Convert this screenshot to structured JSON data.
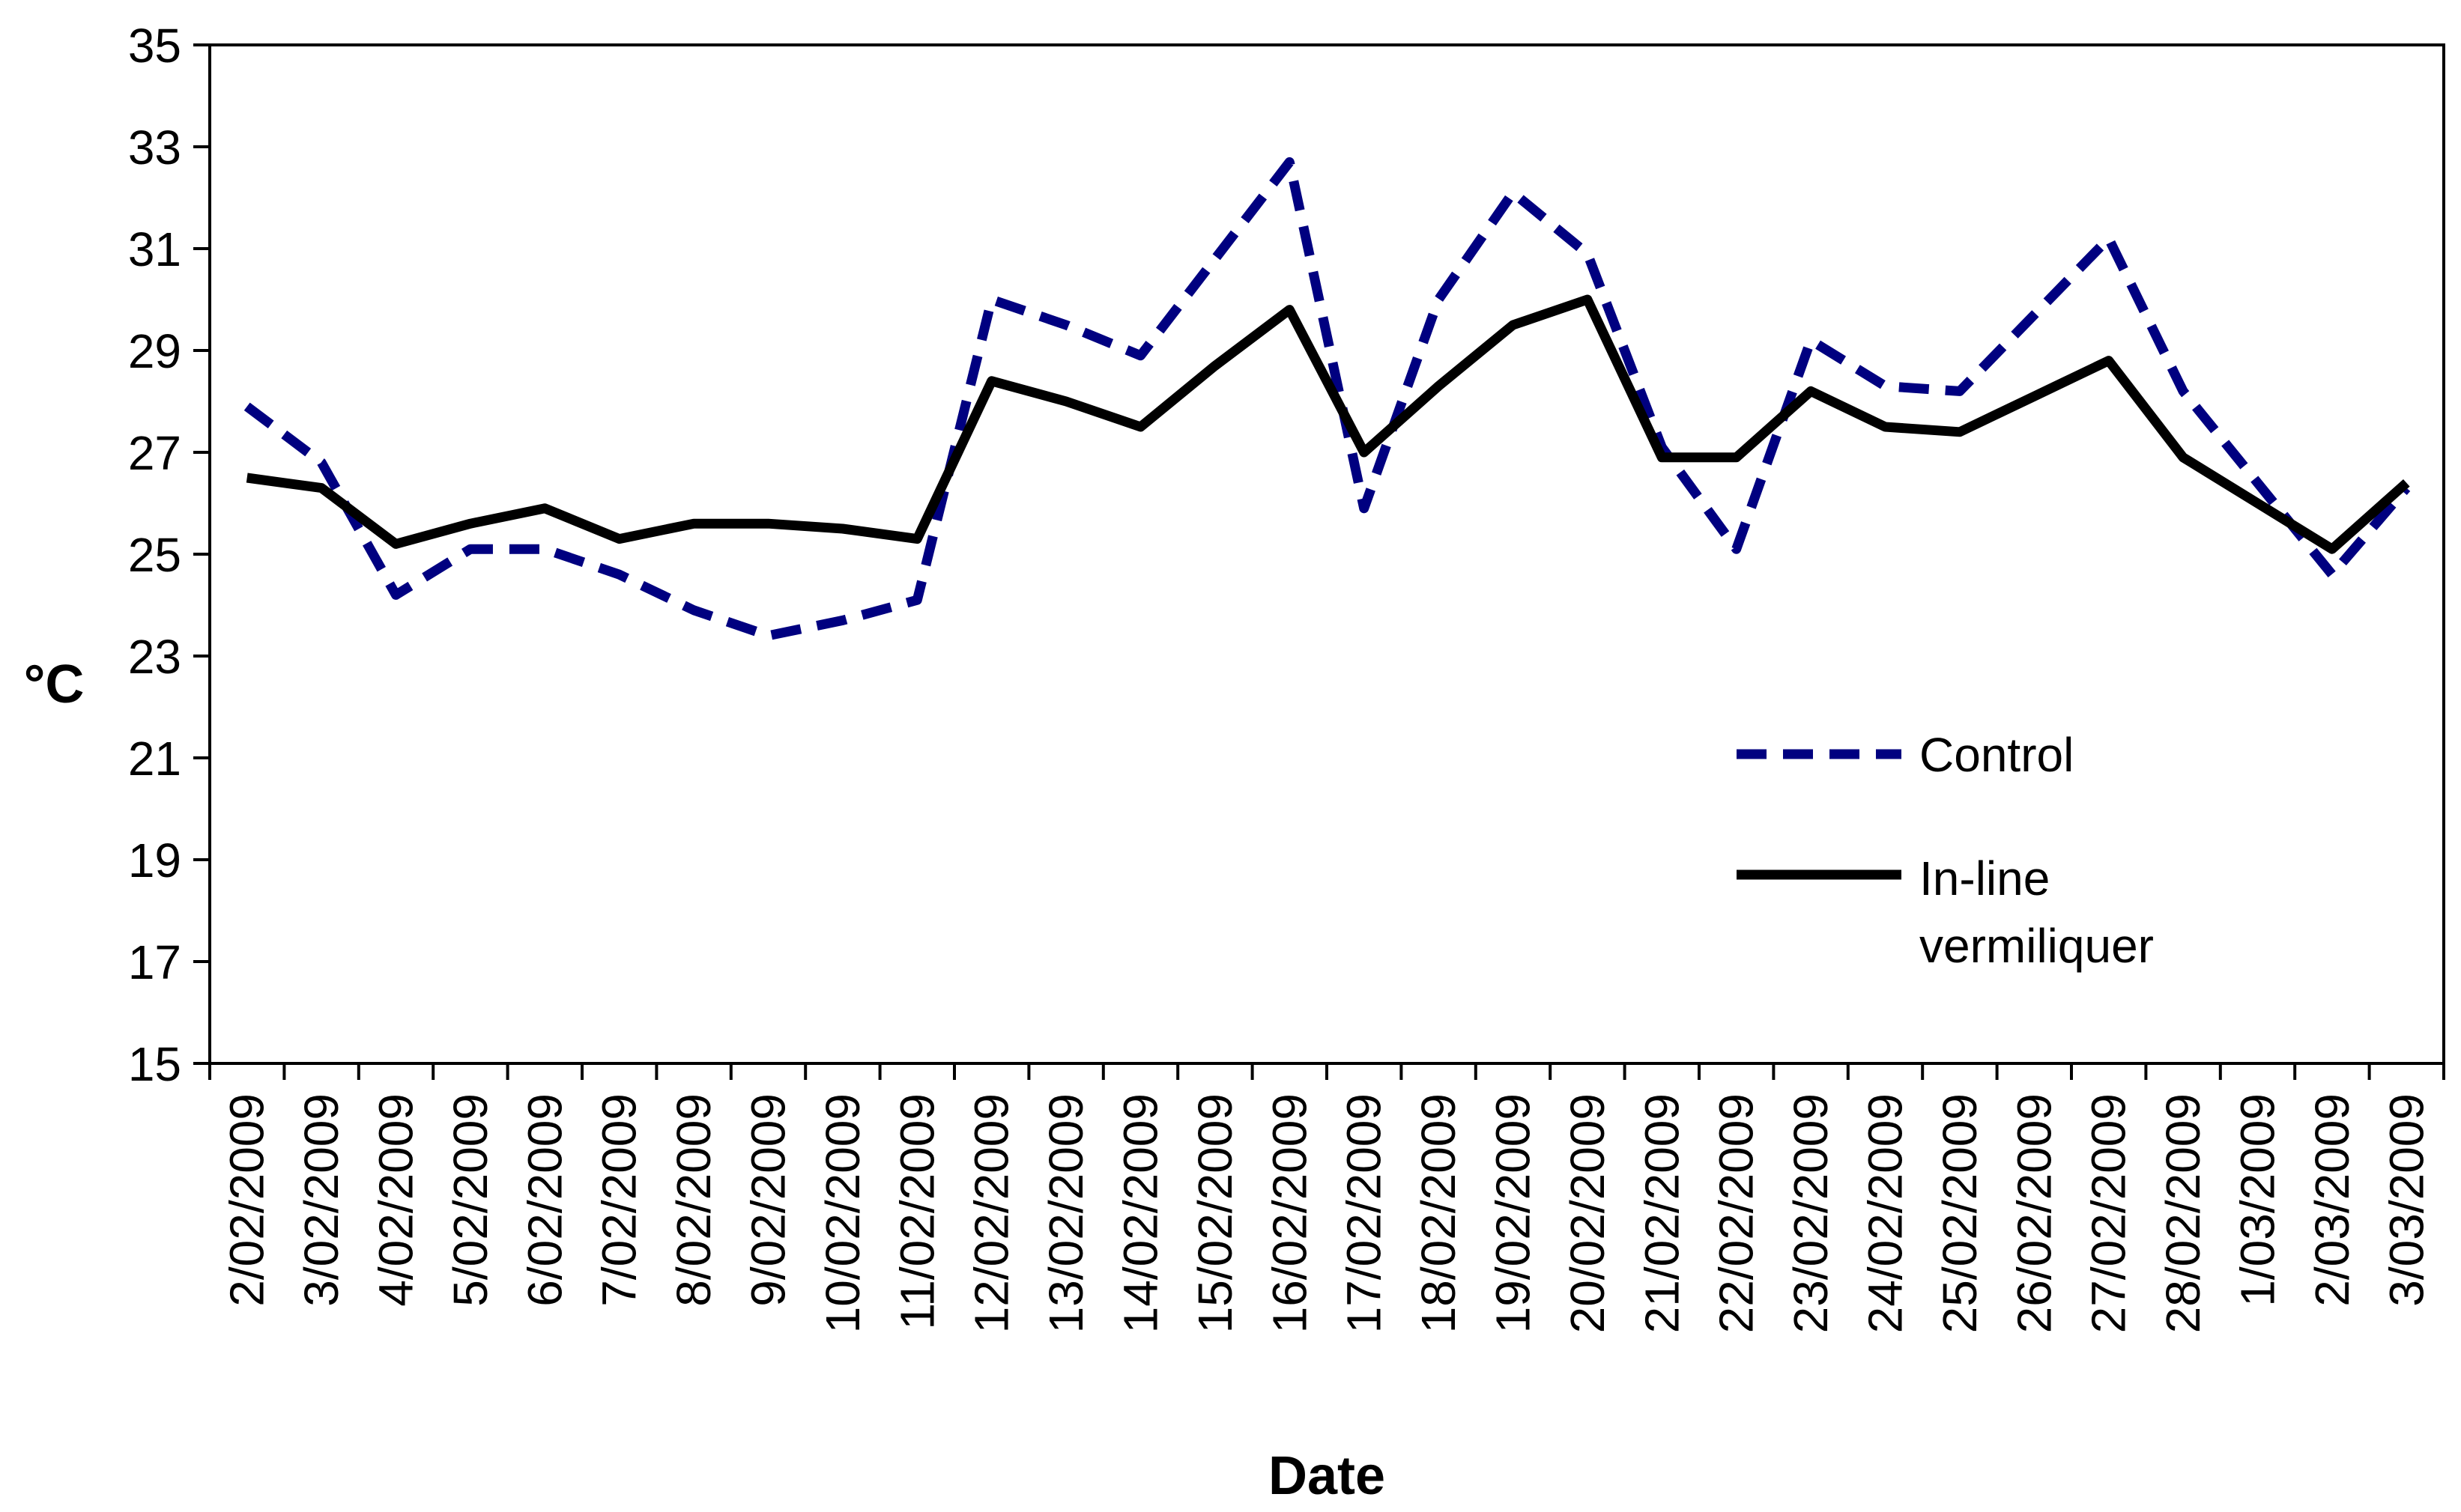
{
  "chart_data": {
    "type": "line",
    "title": "",
    "xlabel": "Date",
    "ylabel": "°C",
    "ylim": [
      15,
      35
    ],
    "yticks": [
      15,
      17,
      19,
      21,
      23,
      25,
      27,
      29,
      31,
      33,
      35
    ],
    "grid": false,
    "legend_position": "right-middle",
    "categories": [
      "2/02/2009",
      "3/02/2009",
      "4/02/2009",
      "5/02/2009",
      "6/02/2009",
      "7/02/2009",
      "8/02/2009",
      "9/02/2009",
      "10/02/2009",
      "11/02/2009",
      "12/02/2009",
      "13/02/2009",
      "14/02/2009",
      "15/02/2009",
      "16/02/2009",
      "17/02/2009",
      "18/02/2009",
      "19/02/2009",
      "20/02/2009",
      "21/02/2009",
      "22/02/2009",
      "23/02/2009",
      "24/02/2009",
      "25/02/2009",
      "26/02/2009",
      "27/02/2009",
      "28/02/2009",
      "1/03/2009",
      "2/03/2009",
      "3/03/2009"
    ],
    "series": [
      {
        "name": "Control",
        "color": "#000080",
        "style": "dashed",
        "values": [
          27.9,
          26.8,
          24.2,
          25.1,
          25.1,
          24.6,
          23.9,
          23.4,
          23.7,
          24.1,
          30.0,
          29.5,
          28.9,
          30.8,
          32.7,
          25.9,
          30.0,
          32.1,
          30.9,
          27.1,
          25.1,
          29.2,
          28.3,
          28.2,
          29.7,
          31.2,
          28.2,
          26.4,
          24.6,
          26.3
        ]
      },
      {
        "name": "In-line vermiliquer",
        "color": "#000000",
        "style": "solid",
        "values": [
          26.5,
          26.3,
          25.2,
          25.6,
          25.9,
          25.3,
          25.6,
          25.6,
          25.5,
          25.3,
          28.4,
          28.0,
          27.5,
          28.7,
          29.8,
          27.0,
          28.3,
          29.5,
          30.0,
          26.9,
          26.9,
          28.2,
          27.5,
          27.4,
          28.1,
          28.8,
          26.9,
          26.0,
          25.1,
          26.4
        ]
      }
    ]
  }
}
